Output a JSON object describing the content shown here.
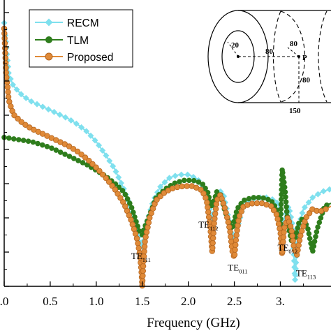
{
  "chart_data": {
    "type": "line",
    "title": "",
    "xlabel": "Frequency (GHz)",
    "ylabel": "",
    "xlim": [
      0,
      3.55
    ],
    "ylim": [
      0,
      1
    ],
    "grid": false,
    "legend_position": "top-left",
    "x_ticks": [
      0.0,
      0.5,
      1.0,
      1.5,
      2.0,
      2.5,
      3.0
    ],
    "x_tick_labels": [
      ".0",
      "0.5",
      "1.0",
      "1.5",
      "2.0",
      "2.5",
      "3."
    ],
    "colors": {
      "RECM": "#7fe0ee",
      "TLM": "#2e7d1c",
      "Proposed": "#e08a38"
    },
    "series": [
      {
        "name": "RECM",
        "marker": "diamond",
        "x": [
          0.0,
          0.05,
          0.1,
          0.2,
          0.3,
          0.4,
          0.5,
          0.6,
          0.7,
          0.8,
          0.9,
          1.0,
          1.1,
          1.2,
          1.3,
          1.38,
          1.44,
          1.48,
          1.5,
          1.52,
          1.56,
          1.62,
          1.7,
          1.8,
          1.9,
          2.0,
          2.1,
          2.18,
          2.23,
          2.26,
          2.29,
          2.33,
          2.38,
          2.43,
          2.47,
          2.5,
          2.53,
          2.58,
          2.65,
          2.75,
          2.85,
          2.95,
          3.0,
          3.02,
          3.05,
          3.09,
          3.13,
          3.16,
          3.19,
          3.25,
          3.35,
          3.45,
          3.55
        ],
        "y": [
          0.92,
          0.74,
          0.7,
          0.665,
          0.645,
          0.63,
          0.615,
          0.6,
          0.585,
          0.565,
          0.54,
          0.505,
          0.46,
          0.41,
          0.34,
          0.27,
          0.2,
          0.15,
          0.135,
          0.165,
          0.235,
          0.3,
          0.35,
          0.38,
          0.39,
          0.39,
          0.375,
          0.34,
          0.28,
          0.22,
          0.28,
          0.335,
          0.325,
          0.25,
          0.19,
          0.16,
          0.2,
          0.26,
          0.3,
          0.31,
          0.31,
          0.3,
          0.27,
          0.21,
          0.24,
          0.28,
          0.22,
          0.02,
          0.2,
          0.27,
          0.31,
          0.33,
          0.34
        ]
      },
      {
        "name": "TLM",
        "marker": "circle",
        "x": [
          0.0,
          0.1,
          0.2,
          0.3,
          0.4,
          0.5,
          0.6,
          0.7,
          0.8,
          0.9,
          1.0,
          1.1,
          1.2,
          1.3,
          1.38,
          1.44,
          1.47,
          1.5,
          1.53,
          1.58,
          1.65,
          1.75,
          1.85,
          1.95,
          2.05,
          2.15,
          2.21,
          2.25,
          2.28,
          2.31,
          2.35,
          2.4,
          2.45,
          2.48,
          2.5,
          2.53,
          2.6,
          2.7,
          2.8,
          2.9,
          2.96,
          3.0,
          3.02,
          3.05,
          3.08,
          3.12,
          3.16,
          3.2,
          3.25,
          3.3,
          3.35,
          3.4,
          3.48,
          3.55
        ],
        "y": [
          0.52,
          0.515,
          0.51,
          0.505,
          0.495,
          0.485,
          0.47,
          0.455,
          0.44,
          0.425,
          0.405,
          0.385,
          0.36,
          0.33,
          0.28,
          0.22,
          0.19,
          0.18,
          0.21,
          0.25,
          0.31,
          0.34,
          0.36,
          0.37,
          0.37,
          0.36,
          0.33,
          0.28,
          0.3,
          0.33,
          0.32,
          0.26,
          0.22,
          0.2,
          0.23,
          0.27,
          0.3,
          0.31,
          0.31,
          0.3,
          0.27,
          0.2,
          0.41,
          0.34,
          0.22,
          0.16,
          0.17,
          0.22,
          0.24,
          0.2,
          0.12,
          0.2,
          0.28,
          0.29
        ]
      },
      {
        "name": "Proposed",
        "marker": "circle",
        "x": [
          0.0,
          0.02,
          0.05,
          0.1,
          0.2,
          0.3,
          0.4,
          0.5,
          0.6,
          0.7,
          0.8,
          0.9,
          1.0,
          1.1,
          1.2,
          1.3,
          1.38,
          1.44,
          1.47,
          1.49,
          1.5,
          1.51,
          1.53,
          1.58,
          1.65,
          1.75,
          1.85,
          1.95,
          2.05,
          2.15,
          2.2,
          2.24,
          2.26,
          2.28,
          2.31,
          2.35,
          2.4,
          2.45,
          2.48,
          2.5,
          2.52,
          2.55,
          2.6,
          2.7,
          2.8,
          2.9,
          2.96,
          3.0,
          3.02,
          3.04,
          3.08,
          3.12,
          3.15,
          3.18,
          3.22,
          3.28,
          3.35,
          3.42,
          3.5,
          3.55
        ],
        "y": [
          0.9,
          0.75,
          0.65,
          0.6,
          0.57,
          0.55,
          0.535,
          0.52,
          0.505,
          0.49,
          0.47,
          0.445,
          0.415,
          0.38,
          0.34,
          0.29,
          0.23,
          0.17,
          0.12,
          0.06,
          0.0,
          0.07,
          0.16,
          0.24,
          0.3,
          0.33,
          0.345,
          0.35,
          0.35,
          0.335,
          0.3,
          0.2,
          0.12,
          0.22,
          0.3,
          0.32,
          0.27,
          0.2,
          0.12,
          0.1,
          0.17,
          0.24,
          0.28,
          0.29,
          0.29,
          0.28,
          0.25,
          0.19,
          0.11,
          0.2,
          0.24,
          0.2,
          0.13,
          0.11,
          0.18,
          0.24,
          0.27,
          0.26,
          0.27,
          0.28
        ]
      }
    ],
    "annotations": [
      {
        "main": "TE",
        "sub": "111",
        "x": 1.38,
        "y": 0.095
      },
      {
        "main": "TE",
        "sub": "112",
        "x": 2.11,
        "y": 0.205
      },
      {
        "main": "TE",
        "sub": "011",
        "x": 2.43,
        "y": 0.055
      },
      {
        "main": "TE",
        "sub": "012",
        "x": 2.97,
        "y": 0.125
      },
      {
        "main": "TE",
        "sub": "113",
        "x": 3.17,
        "y": 0.035
      }
    ],
    "inset": {
      "labels": [
        "20",
        "80",
        "80",
        "P",
        "80",
        "150"
      ]
    }
  }
}
